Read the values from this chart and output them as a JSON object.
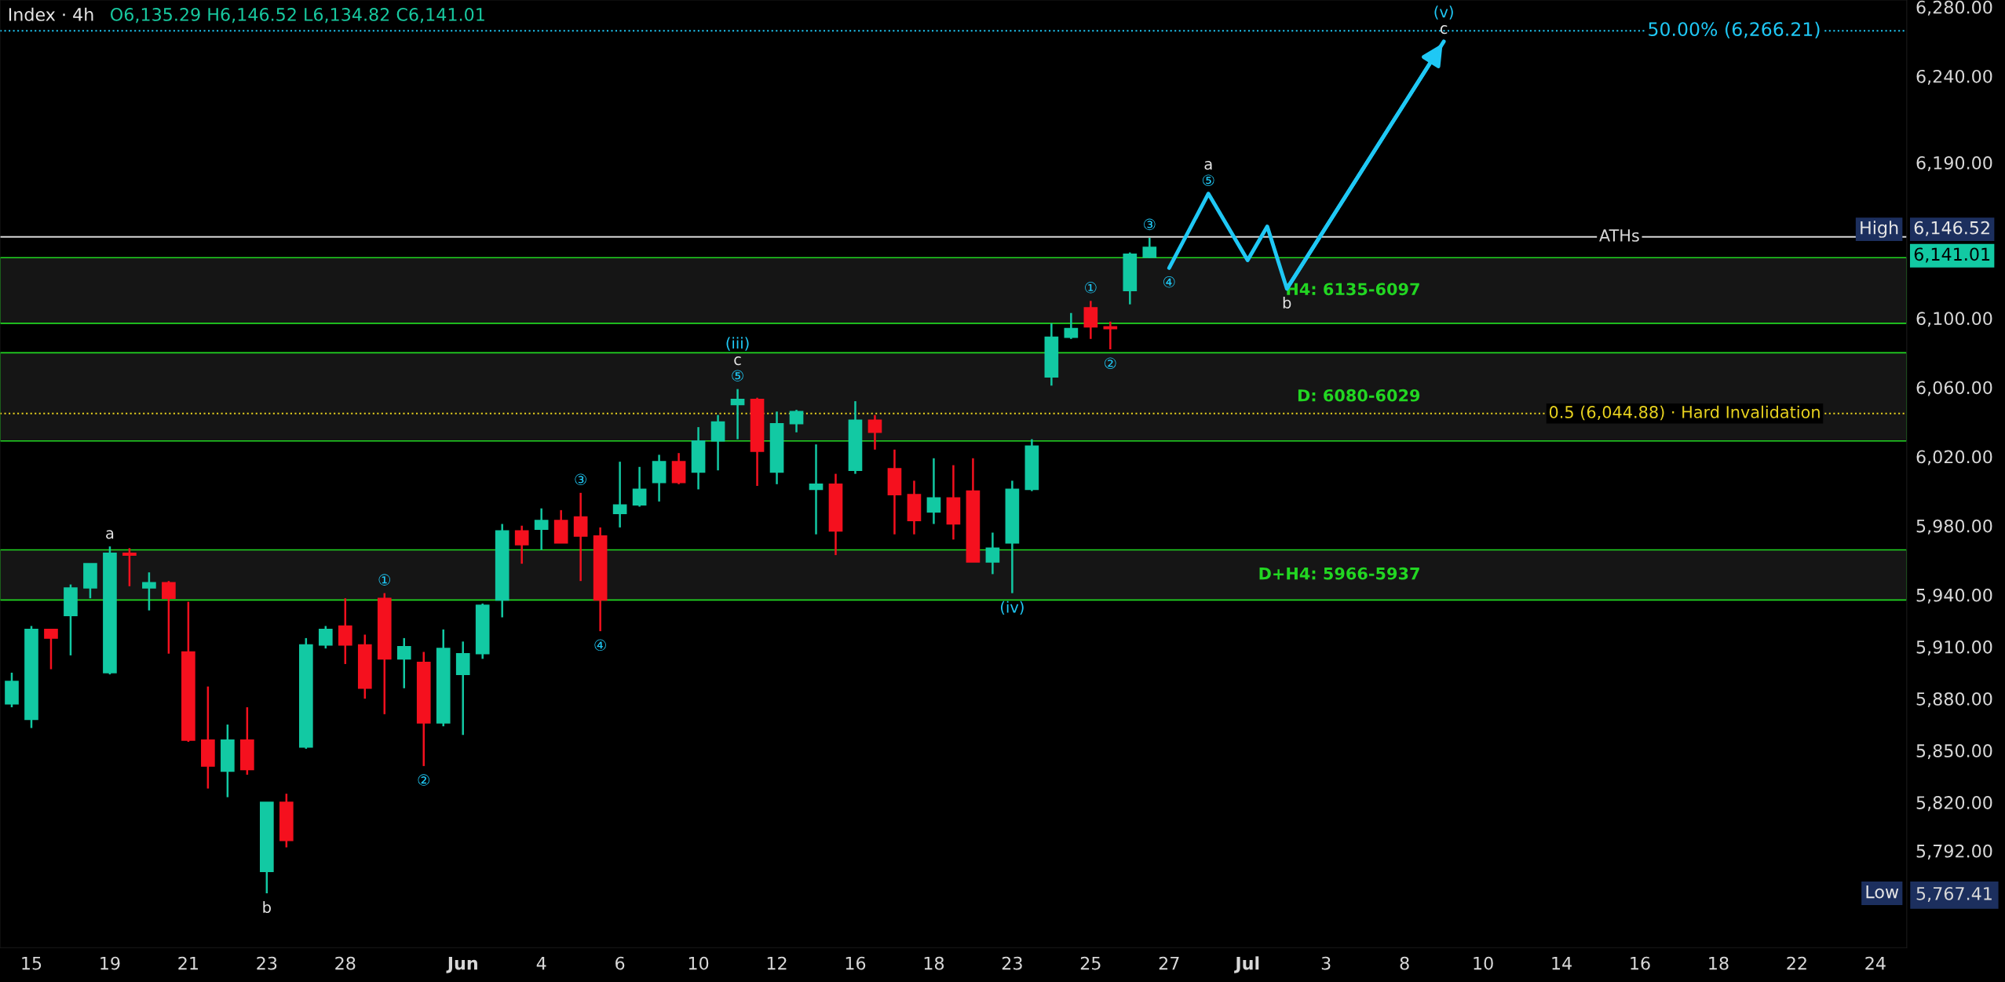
{
  "chart_data": {
    "type": "candlestick",
    "title": "Index · 4h",
    "annotations": [
      "O6,135.29 H6,146.52 L6,134.82 C6,141.01",
      "High",
      "Low",
      "6,146.52",
      "6,141.01"
    ],
    "categories": [
      null,
      "15",
      null,
      null,
      null,
      "19",
      null,
      null,
      null,
      "21",
      null,
      null,
      null,
      "23",
      null,
      null,
      null,
      "28",
      null,
      null,
      null,
      null,
      null,
      "Jun",
      null,
      null,
      null,
      "4",
      null,
      null,
      null,
      "6",
      null,
      null,
      null,
      "10",
      null,
      null,
      null,
      "12",
      null,
      null,
      null,
      "16",
      null,
      null,
      null,
      "18",
      null,
      null,
      null,
      "23",
      null,
      null,
      null,
      "25",
      null,
      null,
      null,
      "27",
      null,
      null,
      null,
      "Jul",
      null,
      null,
      null,
      "3",
      null,
      null,
      null,
      "8",
      null,
      null,
      null,
      "10",
      null,
      null,
      null,
      "14",
      null,
      null,
      null,
      "16",
      null,
      null,
      null,
      "18",
      null,
      null,
      null,
      "22",
      null,
      null,
      null,
      "24",
      null
    ],
    "colors": [
      "#12c9a3",
      "#12c9a3",
      "#f5101e",
      "#12c9a3",
      "#12c9a3",
      "#12c9a3",
      "#f5101e",
      "#12c9a3",
      "#f5101e",
      "#f5101e",
      "#f5101e",
      "#12c9a3",
      "#f5101e",
      "#12c9a3",
      "#f5101e",
      "#12c9a3",
      "#12c9a3",
      "#f5101e",
      "#f5101e",
      "#f5101e",
      "#12c9a3",
      "#f5101e",
      "#12c9a3",
      "#12c9a3",
      "#12c9a3",
      "#12c9a3",
      "#f5101e",
      "#12c9a3",
      "#f5101e",
      "#f5101e",
      "#f5101e",
      "#12c9a3",
      "#12c9a3",
      "#12c9a3",
      "#f5101e",
      "#12c9a3",
      "#12c9a3",
      "#12c9a3",
      "#f5101e",
      "#12c9a3",
      "#12c9a3",
      "#12c9a3",
      "#f5101e",
      "#12c9a3",
      "#f5101e",
      "#f5101e",
      "#f5101e",
      "#12c9a3",
      "#f5101e",
      "#f5101e",
      "#12c9a3",
      "#12c9a3",
      "#12c9a3",
      "#12c9a3",
      "#12c9a3",
      "#f5101e",
      "#f5101e",
      "#12c9a3",
      "#12c9a3",
      null,
      null,
      null,
      null,
      null,
      null,
      null,
      null,
      null,
      null,
      null,
      null,
      null,
      null,
      null,
      null,
      null,
      null,
      null,
      null,
      null,
      null,
      null,
      null,
      null,
      null,
      null,
      null,
      null,
      null,
      null,
      null,
      null,
      null,
      null,
      null,
      null,
      null
    ],
    "ohlc": [
      [
        5877,
        5895,
        5875,
        5890
      ],
      [
        5868,
        5922,
        5863,
        5920
      ],
      [
        5920,
        5920,
        5897,
        5915
      ],
      [
        5928,
        5946,
        5905,
        5944
      ],
      [
        5944,
        5958,
        5938,
        5958
      ],
      [
        5895,
        5968,
        5894,
        5964
      ],
      [
        5964,
        5967,
        5945,
        5963
      ],
      [
        5944,
        5953,
        5931,
        5947
      ],
      [
        5947,
        5948,
        5906,
        5938
      ],
      [
        5907,
        5936,
        5855,
        5856
      ],
      [
        5856,
        5887,
        5828,
        5841
      ],
      [
        5838,
        5865,
        5823,
        5856
      ],
      [
        5856,
        5875,
        5836,
        5839
      ],
      [
        5780,
        5820,
        5767.41,
        5820
      ],
      [
        5820,
        5825,
        5794,
        5798
      ],
      [
        5852,
        5915,
        5851,
        5911
      ],
      [
        5911,
        5922,
        5909,
        5920
      ],
      [
        5922,
        5938,
        5900,
        5911
      ],
      [
        5911,
        5917,
        5880,
        5886
      ],
      [
        5938,
        5941,
        5871,
        5903
      ],
      [
        5903,
        5915,
        5886,
        5910
      ],
      [
        5901,
        5907,
        5841,
        5866
      ],
      [
        5866,
        5920,
        5864,
        5909
      ],
      [
        5894,
        5913,
        5859,
        5906
      ],
      [
        5906,
        5935,
        5903,
        5934
      ],
      [
        5937,
        5981,
        5927,
        5977
      ],
      [
        5977,
        5980,
        5958,
        5969
      ],
      [
        5978,
        5990,
        5966,
        5983
      ],
      [
        5983,
        5989,
        5970,
        5970
      ],
      [
        5985,
        5999,
        5948,
        5974
      ],
      [
        5974,
        5979,
        5919,
        5937
      ],
      [
        5987,
        6017,
        5979,
        5992
      ],
      [
        5992,
        6014,
        5991,
        6001
      ],
      [
        6005,
        6021,
        5994,
        6017
      ],
      [
        6017,
        6022,
        6004,
        6005
      ],
      [
        6011,
        6037,
        6001,
        6029
      ],
      [
        6029,
        6044,
        6012,
        6040
      ],
      [
        6050,
        6059,
        6030,
        6053
      ],
      [
        6053,
        6054,
        6003,
        6023
      ],
      [
        6011,
        6046,
        6004,
        6039
      ],
      [
        6039,
        6047,
        6034,
        6046
      ],
      [
        6001,
        6027,
        5975,
        6004
      ],
      [
        6004,
        6010,
        5963,
        5977
      ],
      [
        6012,
        6052,
        6010,
        6041
      ],
      [
        6041,
        6044,
        6024,
        6034
      ],
      [
        6013,
        6024,
        5975,
        5998
      ],
      [
        5998,
        6006,
        5975,
        5983
      ],
      [
        5988,
        6019,
        5981,
        5996
      ],
      [
        5996,
        6015,
        5972,
        5981
      ],
      [
        6000,
        6019,
        5959,
        5959
      ],
      [
        5959,
        5976,
        5952,
        5967
      ],
      [
        5970,
        6006,
        5941,
        6001
      ],
      [
        6001,
        6030,
        6000,
        6026
      ],
      [
        6066,
        6097,
        6061,
        6089
      ],
      [
        6089,
        6103,
        6088,
        6094
      ],
      [
        6106,
        6110,
        6088,
        6095
      ],
      [
        6095,
        6098,
        6082,
        6094
      ],
      [
        6116,
        6138,
        6108,
        6137
      ],
      [
        6135.29,
        6146.52,
        6134.82,
        6141.01
      ],
      null,
      null,
      null,
      null,
      null,
      null,
      null,
      null,
      null,
      null,
      null,
      null,
      null,
      null,
      null,
      null,
      null,
      null,
      null,
      null,
      null,
      null,
      null,
      null,
      null,
      null,
      null,
      null,
      null,
      null,
      null,
      null,
      null,
      null,
      null,
      null,
      null,
      null
    ],
    "value_labels": [
      null,
      null,
      null,
      null,
      null,
      "a",
      null,
      null,
      null,
      null,
      null,
      null,
      null,
      "b",
      null,
      null,
      null,
      null,
      null,
      "①",
      null,
      "②",
      null,
      null,
      null,
      null,
      null,
      null,
      null,
      "③",
      "④",
      null,
      null,
      null,
      null,
      null,
      null,
      "(iii)\nc\n⑤",
      null,
      null,
      null,
      null,
      null,
      null,
      null,
      null,
      null,
      null,
      null,
      null,
      null,
      "(iv)",
      null,
      null,
      null,
      "①",
      "②",
      null,
      "③",
      null,
      null,
      null,
      null,
      null,
      null,
      null,
      null,
      null,
      null,
      null,
      null,
      null,
      null,
      null,
      null,
      null,
      null,
      null,
      null,
      null,
      null,
      null,
      null,
      null,
      null,
      null,
      null,
      null,
      null,
      null,
      null,
      null,
      null,
      null,
      null,
      null,
      null
    ],
    "series": [
      {
        "type": "line",
        "color": "#1fc8f5",
        "line_style": "solid",
        "values": [
          null,
          null,
          null,
          null,
          null,
          null,
          null,
          null,
          null,
          null,
          null,
          null,
          null,
          null,
          null,
          null,
          null,
          null,
          null,
          null,
          null,
          null,
          null,
          null,
          null,
          null,
          null,
          null,
          null,
          null,
          null,
          null,
          null,
          null,
          null,
          null,
          null,
          null,
          null,
          null,
          null,
          null,
          null,
          null,
          null,
          null,
          null,
          null,
          null,
          null,
          null,
          null,
          null,
          null,
          null,
          null,
          null,
          null,
          null,
          6129,
          null,
          6172,
          null,
          6133.5,
          6153,
          6117,
          null,
          null,
          null,
          null,
          null,
          null,
          null,
          6260,
          null,
          null,
          null,
          null,
          null,
          null,
          null,
          null,
          null,
          null,
          null,
          null,
          null,
          null,
          null,
          null,
          null,
          null,
          null,
          null,
          null,
          null,
          null
        ],
        "value_labels": [
          null,
          null,
          null,
          null,
          null,
          null,
          null,
          null,
          null,
          null,
          null,
          null,
          null,
          null,
          null,
          null,
          null,
          null,
          null,
          null,
          null,
          null,
          null,
          null,
          null,
          null,
          null,
          null,
          null,
          null,
          null,
          null,
          null,
          null,
          null,
          null,
          null,
          null,
          null,
          null,
          null,
          null,
          null,
          null,
          null,
          null,
          null,
          null,
          null,
          null,
          null,
          null,
          null,
          null,
          null,
          null,
          null,
          null,
          null,
          "④",
          null,
          "a\n⑤",
          null,
          null,
          null,
          "b",
          null,
          null,
          null,
          null,
          null,
          null,
          null,
          "(v)\nc",
          null,
          null,
          null,
          null,
          null,
          null,
          null,
          null,
          null,
          null,
          null,
          null,
          null,
          null,
          null,
          null,
          null,
          null,
          null,
          null,
          null,
          null,
          null
        ]
      }
    ],
    "ref_lines": [
      {
        "axis": "y",
        "value": 6266.21,
        "label": "50.00% (6,266.21)",
        "color": "#1fc8f5",
        "line_style": "dotted"
      },
      {
        "axis": "y",
        "value": 6147,
        "label": "ATHs",
        "color": "#d8d8d8",
        "line_style": "solid"
      },
      {
        "axis": "y",
        "value": 6044.88,
        "label": "0.5 (6,044.88) · Hard Invalidation",
        "color": "#e8d21f",
        "line_style": "dotted"
      }
    ],
    "bands": [
      {
        "axis": "y",
        "from": 6097,
        "to": 6135,
        "label": "H4: 6135-6097",
        "color": "#22d622"
      },
      {
        "axis": "y",
        "from": 6029,
        "to": 6080,
        "label": "D: 6080-6029",
        "color": "#22d622"
      },
      {
        "axis": "y",
        "from": 5937,
        "to": 5966,
        "label": "D+H4: 5966-5937",
        "color": "#22d622"
      }
    ],
    "ylim": [
      5736,
      6284
    ],
    "yticks": [
      {
        "value": 6280,
        "label": "6,280.00"
      },
      {
        "value": 6240,
        "label": "6,240.00"
      },
      {
        "value": 6190,
        "label": "6,190.00"
      },
      {
        "value": 6100,
        "label": "6,100.00"
      },
      {
        "value": 6060,
        "label": "6,060.00"
      },
      {
        "value": 6020,
        "label": "6,020.00"
      },
      {
        "value": 5980,
        "label": "5,980.00"
      },
      {
        "value": 5940,
        "label": "5,940.00"
      },
      {
        "value": 5910,
        "label": "5,910.00"
      },
      {
        "value": 5880,
        "label": "5,880.00"
      },
      {
        "value": 5850,
        "label": "5,850.00"
      },
      {
        "value": 5820,
        "label": "5,820.00"
      },
      {
        "value": 5792,
        "label": "5,792.00"
      },
      {
        "value": 5767.41,
        "label": "5,767.41"
      }
    ],
    "grid": false
  }
}
